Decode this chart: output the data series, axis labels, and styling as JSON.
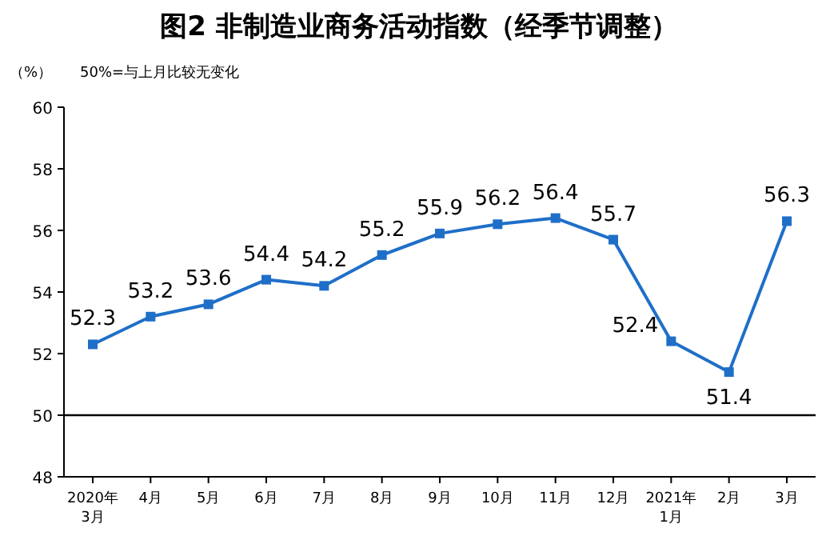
{
  "chart_data": {
    "type": "line",
    "title": "图2  非制造业商务活动指数（经季节调整）",
    "ylabel": "（%）",
    "annotations": [
      "50%=与上月比较无变化"
    ],
    "categories": [
      "2020年\n3月",
      "4月",
      "5月",
      "6月",
      "7月",
      "8月",
      "9月",
      "10月",
      "11月",
      "12月",
      "2021年\n1月",
      "2月",
      "3月"
    ],
    "series": [
      {
        "color": "#1f6fc8",
        "values": [
          52.3,
          53.2,
          53.6,
          54.4,
          54.2,
          55.2,
          55.9,
          56.2,
          56.4,
          55.7,
          52.4,
          51.4,
          56.3
        ]
      }
    ],
    "ylim": [
      48,
      60
    ],
    "yticks": [
      48,
      50,
      52,
      54,
      56,
      58,
      60
    ],
    "ref_lines": [
      {
        "axis": "y",
        "value": 50,
        "color": "#000000"
      }
    ],
    "marker": "square",
    "line_style": "solid",
    "data_labels": true,
    "grid": false
  }
}
